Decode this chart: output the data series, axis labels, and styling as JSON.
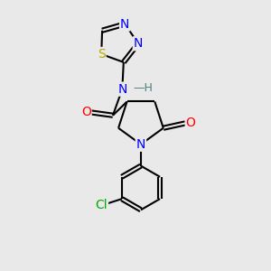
{
  "background_color": "#e9e9e9",
  "bond_color": "#000000",
  "atom_colors": {
    "N": "#0000ff",
    "O": "#ff0000",
    "S": "#bbaa00",
    "Cl": "#00aa00",
    "C": "#000000",
    "H": "#508080"
  },
  "font_size_atoms": 10,
  "figsize": [
    3.0,
    3.0
  ],
  "dpi": 100,
  "lw": 1.5,
  "perp": 0.07
}
